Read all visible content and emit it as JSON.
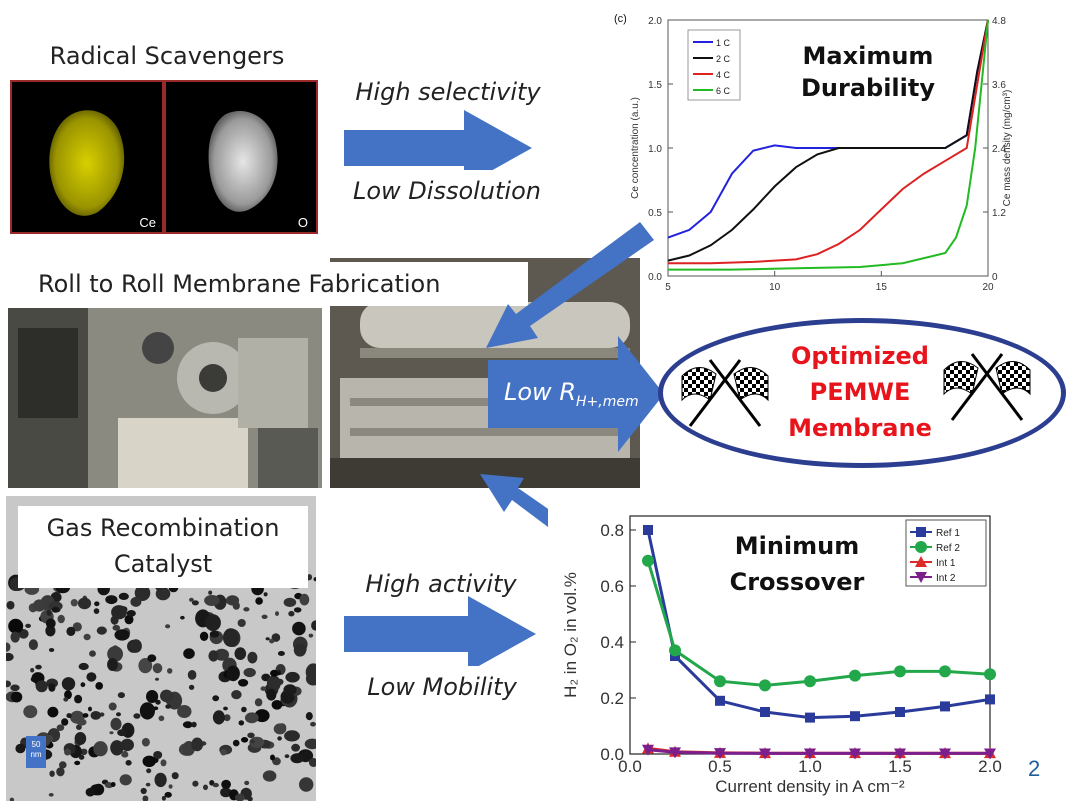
{
  "sections": {
    "scavengers_title": "Radical Scavengers",
    "roll_title": "Roll to Roll Membrane Fabrication",
    "gas_title_line1": "Gas Recombination",
    "gas_title_line2": "Catalyst"
  },
  "arrows": {
    "top_line1": "High selectivity",
    "top_line2": "Low Dissolution",
    "bottom_line1": "High activity",
    "bottom_line2": "Low Mobility",
    "middle_main": "Low R",
    "middle_sub": "H+,mem"
  },
  "eds": {
    "ce_label": "Ce",
    "o_label": "O"
  },
  "scale_bar": {
    "value": "50",
    "unit": "nm"
  },
  "goal": {
    "line1": "Optimized",
    "line2": "PEMWE",
    "line3": "Membrane",
    "color": "#e8141c"
  },
  "page_number": "2",
  "chart_data": [
    {
      "type": "line",
      "panel_label": "(c)",
      "overlay_title_line1": "Maximum",
      "overlay_title_line2": "Durability",
      "ylabel": "Ce concentration (a.u.)",
      "y2label": "Ce mass density (mg/cm³)",
      "xlim": [
        5,
        20
      ],
      "ylim": [
        0,
        2.0
      ],
      "y2lim": [
        0,
        4.8
      ],
      "xticks": [
        "5",
        "10",
        "15",
        "20"
      ],
      "yticks": [
        "0.0",
        "0.5",
        "1.0",
        "1.5",
        "2.0"
      ],
      "y2ticks": [
        "0",
        "1.2",
        "2.4",
        "3.6",
        "4.8"
      ],
      "legend_position": "top-left",
      "series": [
        {
          "name": "1 C",
          "color": "#2222dd",
          "x": [
            5,
            6,
            7,
            8,
            9,
            10,
            11,
            12,
            14,
            16,
            18,
            19,
            19.5,
            20
          ],
          "y": [
            0.3,
            0.36,
            0.5,
            0.8,
            0.98,
            1.02,
            1.0,
            1.0,
            1.0,
            1.0,
            1.0,
            1.1,
            1.6,
            2.0
          ]
        },
        {
          "name": "2 C",
          "color": "#111111",
          "x": [
            5,
            6,
            7,
            8,
            9,
            10,
            11,
            12,
            13,
            14,
            16,
            18,
            19,
            19.5,
            20
          ],
          "y": [
            0.12,
            0.16,
            0.24,
            0.36,
            0.52,
            0.7,
            0.85,
            0.95,
            1.0,
            1.0,
            1.0,
            1.0,
            1.1,
            1.6,
            2.0
          ]
        },
        {
          "name": "4 C",
          "color": "#dd2222",
          "x": [
            5,
            7,
            9,
            11,
            12,
            13,
            14,
            15,
            16,
            17,
            18,
            19,
            19.5,
            20
          ],
          "y": [
            0.1,
            0.1,
            0.11,
            0.13,
            0.17,
            0.25,
            0.36,
            0.52,
            0.68,
            0.8,
            0.9,
            1.0,
            1.5,
            2.0
          ]
        },
        {
          "name": "6 C",
          "color": "#22bb22",
          "x": [
            5,
            8,
            11,
            14,
            16,
            18,
            18.5,
            19,
            19.4,
            19.7,
            20
          ],
          "y": [
            0.05,
            0.05,
            0.06,
            0.07,
            0.1,
            0.18,
            0.3,
            0.55,
            1.0,
            1.5,
            2.0
          ]
        }
      ]
    },
    {
      "type": "line",
      "overlay_title_line1": "Minimum",
      "overlay_title_line2": "Crossover",
      "xlabel": "Current density in A cm⁻²",
      "ylabel": "H₂ in O₂ in vol.%",
      "xlim": [
        0,
        2.0
      ],
      "ylim": [
        0,
        0.85
      ],
      "xticks": [
        "0.0",
        "0.5",
        "1.0",
        "1.5",
        "2.0"
      ],
      "yticks": [
        "0.0",
        "0.2",
        "0.4",
        "0.6",
        "0.8"
      ],
      "legend_position": "top-right",
      "series": [
        {
          "name": "Ref 1",
          "color": "#2b3b9c",
          "marker": "square",
          "x": [
            0.1,
            0.25,
            0.5,
            0.75,
            1.0,
            1.25,
            1.5,
            1.75,
            2.0
          ],
          "y": [
            0.8,
            0.35,
            0.19,
            0.15,
            0.13,
            0.135,
            0.15,
            0.17,
            0.195
          ]
        },
        {
          "name": "Ref 2",
          "color": "#22a84a",
          "marker": "circle",
          "x": [
            0.1,
            0.25,
            0.5,
            0.75,
            1.0,
            1.25,
            1.5,
            1.75,
            2.0
          ],
          "y": [
            0.69,
            0.37,
            0.26,
            0.245,
            0.26,
            0.28,
            0.295,
            0.295,
            0.285
          ]
        },
        {
          "name": "Int 1",
          "color": "#dd2a2a",
          "marker": "triangle-up",
          "x": [
            0.1,
            0.25,
            0.5,
            0.75,
            1.0,
            1.25,
            1.5,
            1.75,
            2.0
          ],
          "y": [
            0.02,
            0.008,
            0.004,
            0.003,
            0.003,
            0.003,
            0.003,
            0.003,
            0.003
          ]
        },
        {
          "name": "Int 2",
          "color": "#7a1f8c",
          "marker": "triangle-down",
          "x": [
            0.1,
            0.25,
            0.5,
            0.75,
            1.0,
            1.25,
            1.5,
            1.75,
            2.0
          ],
          "y": [
            0.015,
            0.006,
            0.003,
            0.002,
            0.002,
            0.002,
            0.002,
            0.002,
            0.002
          ]
        }
      ]
    }
  ]
}
